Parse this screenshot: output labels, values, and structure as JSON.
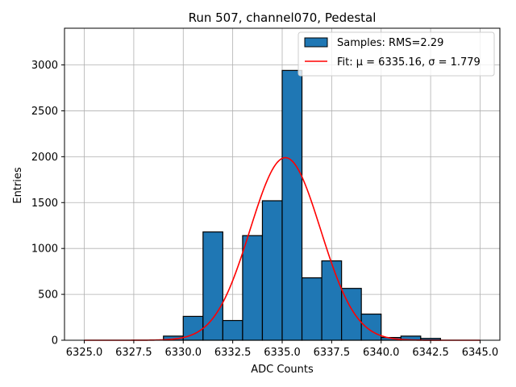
{
  "chart_data": {
    "type": "bar",
    "title": "Run 507, channel070, Pedestal",
    "xlabel": "ADC Counts",
    "ylabel": "Entries",
    "xlim": [
      6324.0,
      6346.0
    ],
    "ylim": [
      0,
      3400
    ],
    "xticks": [
      6325.0,
      6327.5,
      6330.0,
      6332.5,
      6335.0,
      6337.5,
      6340.0,
      6342.5,
      6345.0
    ],
    "xtick_labels": [
      "6325.0",
      "6327.5",
      "6330.0",
      "6332.5",
      "6335.0",
      "6337.5",
      "6340.0",
      "6342.5",
      "6345.0"
    ],
    "yticks": [
      0,
      500,
      1000,
      1500,
      2000,
      2500,
      3000
    ],
    "ytick_labels": [
      "0",
      "500",
      "1000",
      "1500",
      "2000",
      "2500",
      "3000"
    ],
    "grid": true,
    "legend_position": "top-right",
    "series": [
      {
        "name": "Samples: RMS=2.29",
        "kind": "histogram",
        "color": "#1f77b4",
        "bins": [
          {
            "x0": 6329.0,
            "x1": 6330.0,
            "value": 45
          },
          {
            "x0": 6330.0,
            "x1": 6331.0,
            "value": 260
          },
          {
            "x0": 6331.0,
            "x1": 6332.0,
            "value": 1180
          },
          {
            "x0": 6332.0,
            "x1": 6333.0,
            "value": 215
          },
          {
            "x0": 6333.0,
            "x1": 6334.0,
            "value": 1140
          },
          {
            "x0": 6334.0,
            "x1": 6335.0,
            "value": 1520
          },
          {
            "x0": 6335.0,
            "x1": 6336.0,
            "value": 2940
          },
          {
            "x0": 6336.0,
            "x1": 6337.0,
            "value": 680
          },
          {
            "x0": 6337.0,
            "x1": 6338.0,
            "value": 865
          },
          {
            "x0": 6338.0,
            "x1": 6339.0,
            "value": 565
          },
          {
            "x0": 6339.0,
            "x1": 6340.0,
            "value": 285
          },
          {
            "x0": 6340.0,
            "x1": 6341.0,
            "value": 30
          },
          {
            "x0": 6341.0,
            "x1": 6342.0,
            "value": 45
          },
          {
            "x0": 6342.0,
            "x1": 6343.0,
            "value": 20
          }
        ]
      },
      {
        "name": "Fit: μ = 6335.16, σ = 1.779",
        "kind": "gaussian",
        "color": "#ff0000",
        "mu": 6335.16,
        "sigma": 1.779,
        "amplitude": 1990,
        "x_range": [
          6325.0,
          6345.0
        ]
      }
    ]
  }
}
